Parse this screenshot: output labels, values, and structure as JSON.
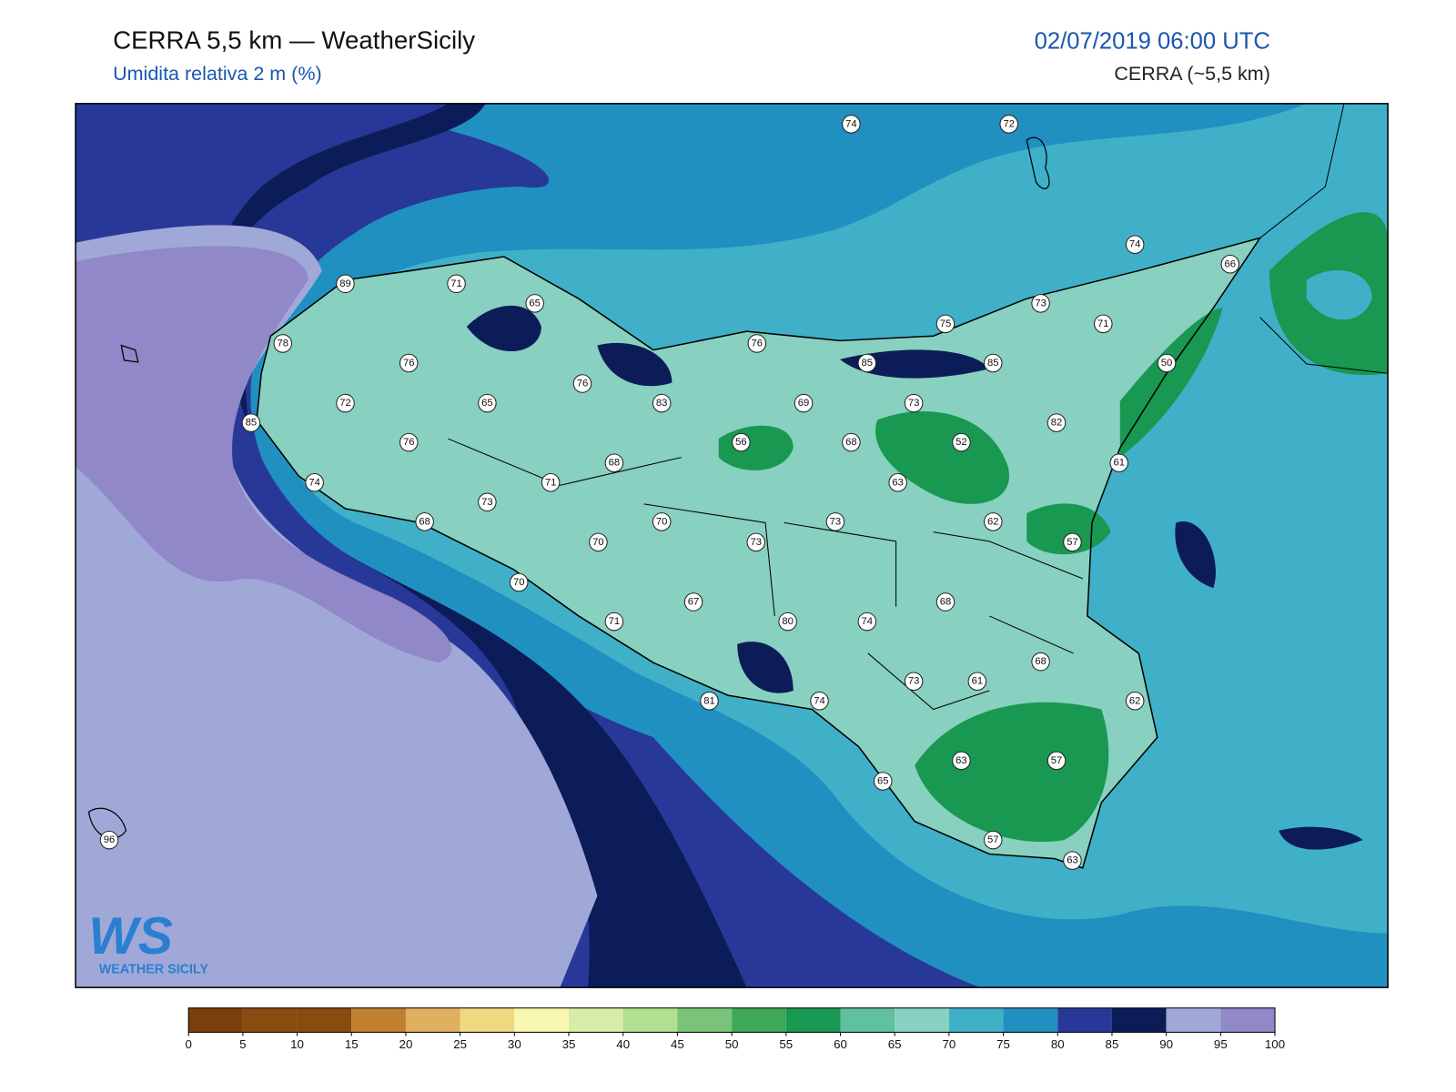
{
  "header": {
    "title": "CERRA 5,5 km — WeatherSicily",
    "subtitle": "Umidita relativa 2 m (%)",
    "datetime": "02/07/2019 06:00 UTC",
    "model": "CERRA (~5,5 km)"
  },
  "map": {
    "station_values": [
      74,
      72,
      74,
      66,
      89,
      71,
      65,
      73,
      75,
      71,
      78,
      76,
      76,
      85,
      85,
      50,
      76,
      72,
      65,
      83,
      69,
      73,
      85,
      82,
      76,
      56,
      68,
      52,
      68,
      61,
      74,
      71,
      63,
      73,
      68,
      70,
      73,
      62,
      70,
      73,
      57,
      70,
      67,
      68,
      71,
      80,
      74,
      68,
      73,
      61,
      81,
      74,
      62,
      63,
      57,
      65,
      57,
      63,
      96
    ]
  },
  "colorbar": {
    "ticks": [
      0,
      5,
      10,
      15,
      20,
      25,
      30,
      35,
      40,
      45,
      50,
      55,
      60,
      65,
      70,
      75,
      80,
      85,
      90,
      95,
      100
    ],
    "colors": [
      "#7a3f0a",
      "#8b4a10",
      "#8b4a10",
      "#c08030",
      "#e0b060",
      "#f0d880",
      "#f8f8b0",
      "#d8eca8",
      "#b0e090",
      "#78c478",
      "#40a858",
      "#189850",
      "#60c0a0",
      "#88d0c0",
      "#40b0c8",
      "#2090c0",
      "#283898",
      "#0c1c58",
      "#a0a8d8",
      "#9088c8"
    ]
  },
  "logo": {
    "mark": "WS",
    "text": "WEATHER SICILY"
  }
}
